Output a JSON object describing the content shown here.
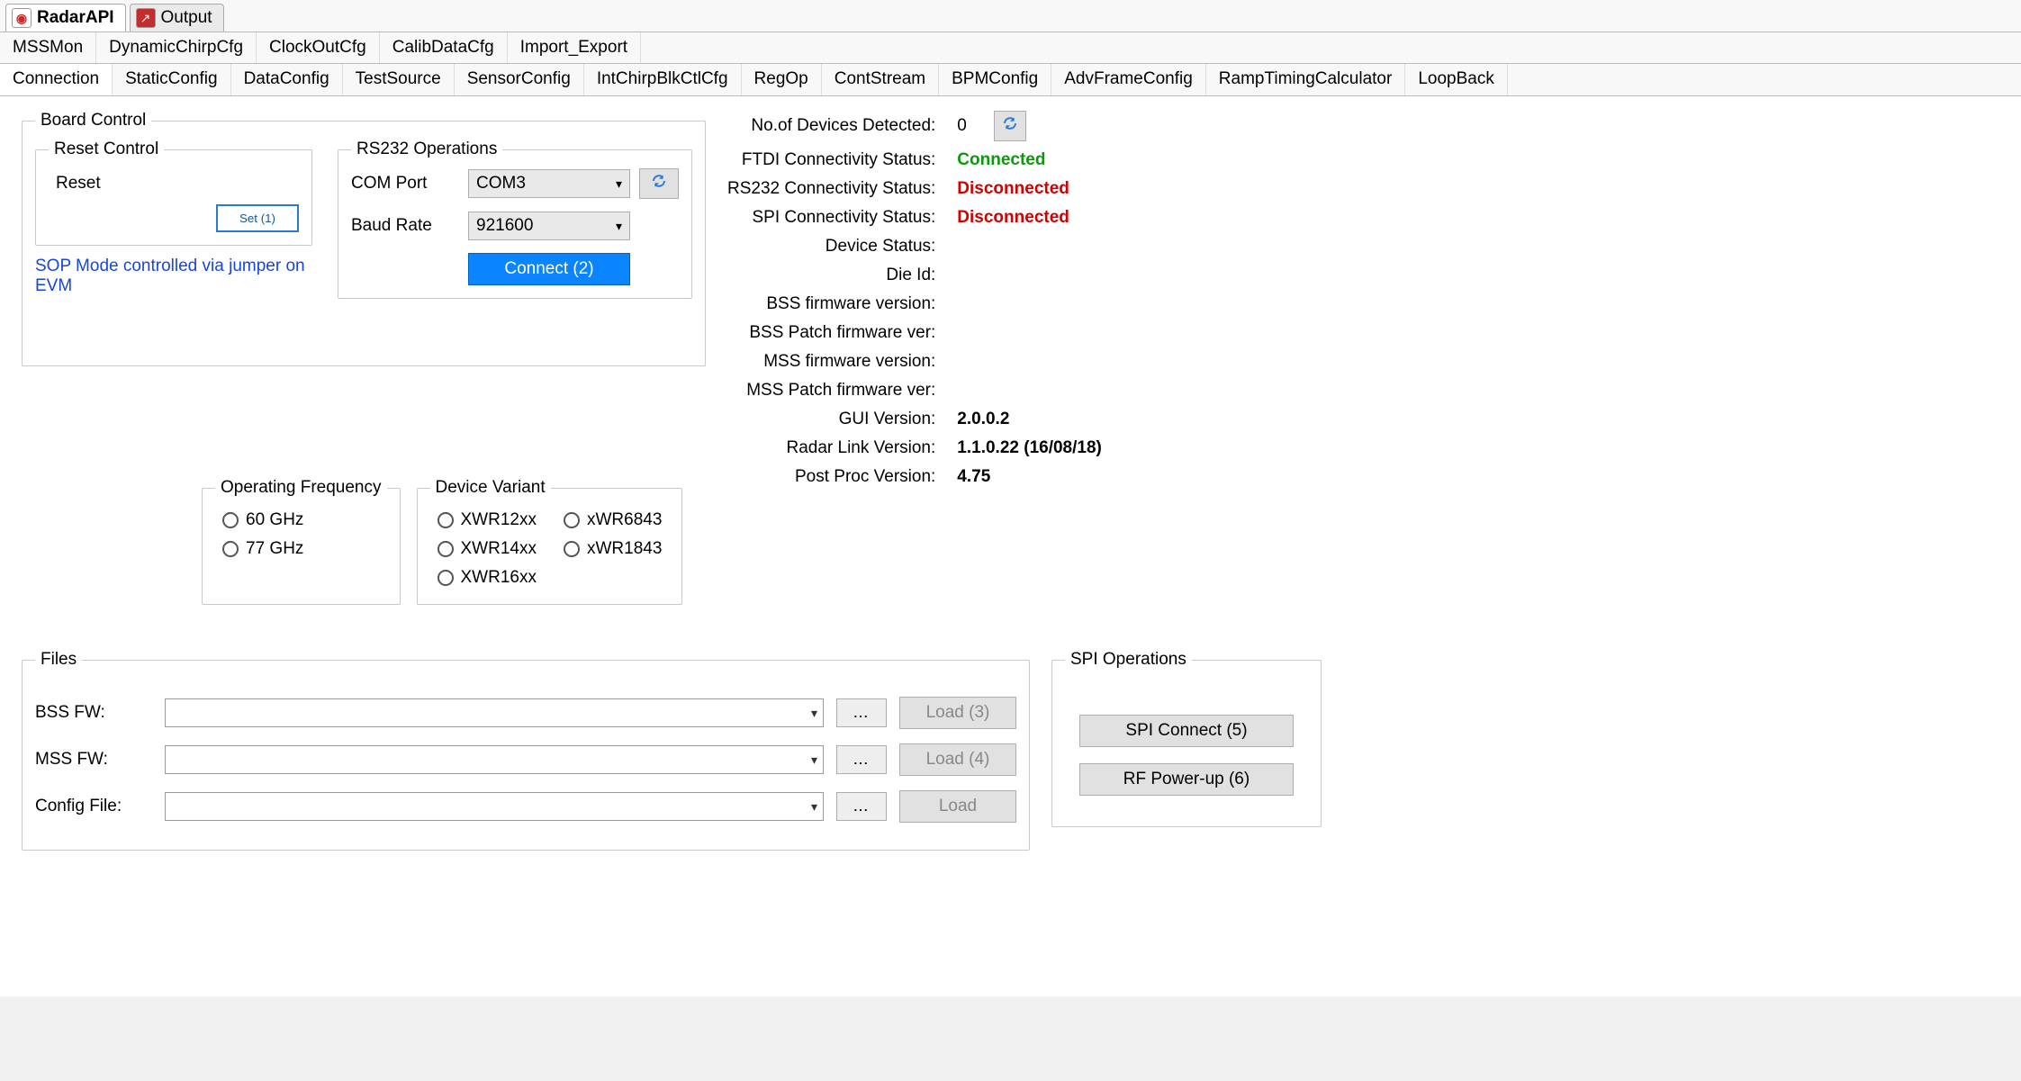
{
  "topTabs": {
    "radarAPI": {
      "label": "RadarAPI",
      "iconColor": "#c42d2c"
    },
    "output": {
      "label": "Output",
      "iconColor": "#c42d2c"
    }
  },
  "tabRow1": [
    "MSSMon",
    "DynamicChirpCfg",
    "ClockOutCfg",
    "CalibDataCfg",
    "Import_Export"
  ],
  "tabRow2": [
    "Connection",
    "StaticConfig",
    "DataConfig",
    "TestSource",
    "SensorConfig",
    "IntChirpBlkCtlCfg",
    "RegOp",
    "ContStream",
    "BPMConfig",
    "AdvFrameConfig",
    "RampTimingCalculator",
    "LoopBack"
  ],
  "boardControl": {
    "legend": "Board Control",
    "resetControl": {
      "legend": "Reset Control",
      "resetLabel": "Reset",
      "setButton": "Set (1)"
    },
    "sopNote": "SOP Mode controlled via jumper on EVM"
  },
  "rs232": {
    "legend": "RS232 Operations",
    "comPortLabel": "COM Port",
    "comPortValue": "COM3",
    "baudRateLabel": "Baud Rate",
    "baudRateValue": "921600",
    "connectButton": "Connect (2)"
  },
  "freq": {
    "legend": "Operating Frequency",
    "opt1": "60 GHz",
    "opt2": "77 GHz"
  },
  "variant": {
    "legend": "Device Variant",
    "xwr12": "XWR12xx",
    "xwr6843": "xWR6843",
    "xwr14": "XWR14xx",
    "xwr1843": "xWR1843",
    "xwr16": "XWR16xx"
  },
  "status": {
    "devicesDetected": {
      "label": "No.of Devices Detected:",
      "value": "0"
    },
    "ftdi": {
      "label": "FTDI Connectivity Status:",
      "value": "Connected",
      "cls": "green"
    },
    "rs232": {
      "label": "RS232 Connectivity Status:",
      "value": "Disconnected",
      "cls": "red"
    },
    "spi": {
      "label": "SPI Connectivity Status:",
      "value": "Disconnected",
      "cls": "red"
    },
    "device": {
      "label": "Device Status:",
      "value": ""
    },
    "dieId": {
      "label": "Die Id:",
      "value": ""
    },
    "bssFw": {
      "label": "BSS firmware version:",
      "value": ""
    },
    "bssPatch": {
      "label": "BSS Patch firmware ver:",
      "value": ""
    },
    "mssFw": {
      "label": "MSS firmware version:",
      "value": ""
    },
    "mssPatch": {
      "label": "MSS Patch firmware ver:",
      "value": ""
    },
    "gui": {
      "label": "GUI Version:",
      "value": "2.0.0.2",
      "cls": "bold"
    },
    "rlink": {
      "label": "Radar Link Version:",
      "value": "1.1.0.22 (16/08/18)",
      "cls": "bold"
    },
    "pproc": {
      "label": "Post Proc Version:",
      "value": "4.75",
      "cls": "bold"
    }
  },
  "files": {
    "legend": "Files",
    "bssLabel": "BSS FW:",
    "bssLoad": "Load (3)",
    "mssLabel": "MSS FW:",
    "mssLoad": "Load (4)",
    "cfgLabel": "Config File:",
    "cfgLoad": "Load",
    "browse": "..."
  },
  "spiOps": {
    "legend": "SPI Operations",
    "connect": "SPI Connect (5)",
    "power": "RF Power-up (6)"
  }
}
